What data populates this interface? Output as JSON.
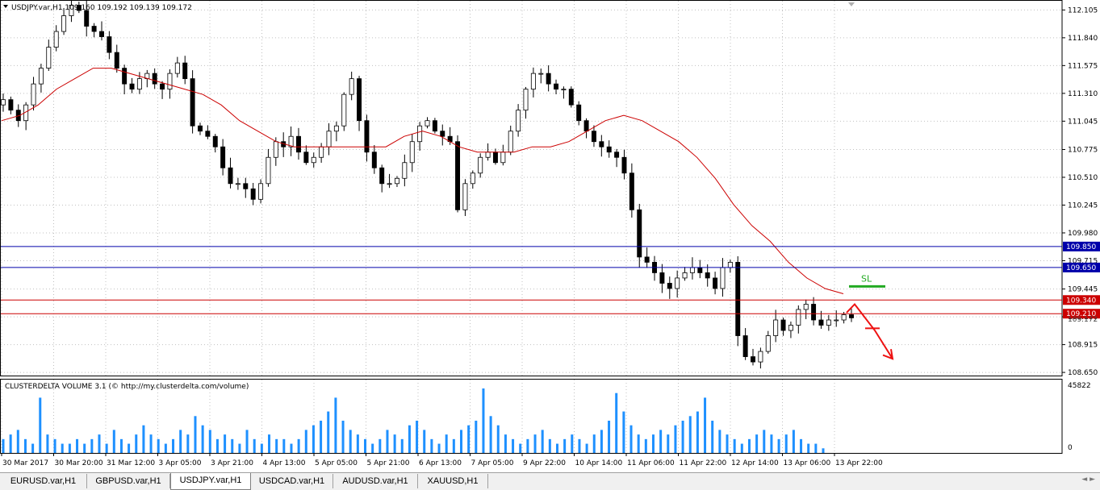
{
  "window": {
    "symbol_header": "USDJPY.var,H1  109.160 109.192 109.139 109.172",
    "indicator_header": "CLUSTERDELTA VOLUME 3.1 (© http://my.clusterdelta.com/volume)"
  },
  "colors": {
    "background": "#ffffff",
    "grid": "#c0c0c0",
    "candle": "#000000",
    "ma_line": "#cc0000",
    "blue_level": "#0000aa",
    "red_level": "#cc0000",
    "volume_bar": "#1e90ff",
    "sl_line": "#22aa22",
    "arrow": "#ee1111"
  },
  "price_axis": {
    "ticks": [
      "112.105",
      "111.840",
      "111.575",
      "111.310",
      "111.045",
      "110.775",
      "110.510",
      "110.245",
      "109.980",
      "109.715",
      "109.445",
      "109.180",
      "108.915",
      "108.650"
    ]
  },
  "levels": [
    {
      "price": "109.850",
      "color": "blue"
    },
    {
      "price": "109.650",
      "color": "blue"
    },
    {
      "price": "109.340",
      "color": "red"
    },
    {
      "price": "109.210",
      "color": "red"
    }
  ],
  "current_price_partial": "109.172",
  "annotation": {
    "sl_label": "SL"
  },
  "volume_axis": {
    "max_label": "45822",
    "zero_label": "0"
  },
  "time_axis": [
    "30 Mar 2017",
    "30 Mar 20:00",
    "31 Mar 12:00",
    "3 Apr 05:00",
    "3 Apr 21:00",
    "4 Apr 13:00",
    "5 Apr 05:00",
    "5 Apr 21:00",
    "6 Apr 13:00",
    "7 Apr 05:00",
    "9 Apr 22:00",
    "10 Apr 14:00",
    "11 Apr 06:00",
    "11 Apr 22:00",
    "12 Apr 14:00",
    "13 Apr 06:00",
    "13 Apr 22:00"
  ],
  "tabs": [
    {
      "label": "EURUSD.var,H1",
      "active": false
    },
    {
      "label": "GBPUSD.var,H1",
      "active": false
    },
    {
      "label": "USDJPY.var,H1",
      "active": true
    },
    {
      "label": "USDCAD.var,H1",
      "active": false
    },
    {
      "label": "AUDUSD.var,H1",
      "active": false
    },
    {
      "label": "XAUUSD,H1",
      "active": false
    }
  ],
  "chart_data": {
    "type": "candlestick",
    "symbol": "USDJPY.var",
    "timeframe": "H1",
    "ylim": [
      108.65,
      112.2
    ],
    "closes_approx": [
      111.25,
      111.15,
      111.05,
      111.2,
      111.4,
      111.55,
      111.75,
      111.9,
      112.05,
      112.15,
      112.1,
      111.95,
      111.9,
      111.85,
      111.7,
      111.55,
      111.4,
      111.35,
      111.45,
      111.5,
      111.4,
      111.35,
      111.5,
      111.6,
      111.45,
      111.0,
      110.95,
      110.9,
      110.8,
      110.6,
      110.45,
      110.45,
      110.4,
      110.3,
      110.45,
      110.7,
      110.85,
      110.8,
      110.9,
      110.75,
      110.65,
      110.7,
      110.8,
      110.95,
      111.0,
      111.3,
      111.45,
      111.05,
      110.75,
      110.6,
      110.45,
      110.45,
      110.5,
      110.65,
      110.85,
      111.0,
      111.05,
      110.95,
      110.9,
      110.85,
      110.2,
      110.45,
      110.55,
      110.7,
      110.75,
      110.65,
      110.75,
      110.95,
      111.15,
      111.35,
      111.5,
      111.5,
      111.4,
      111.35,
      111.35,
      111.2,
      111.05,
      110.95,
      110.85,
      110.8,
      110.75,
      110.7,
      110.55,
      110.2,
      109.75,
      109.7,
      109.6,
      109.5,
      109.45,
      109.55,
      109.6,
      109.65,
      109.6,
      109.55,
      109.45,
      109.65,
      109.7,
      109.0,
      108.8,
      108.75,
      108.85,
      109.0,
      109.15,
      109.05,
      109.1,
      109.25,
      109.3,
      109.15,
      109.1,
      109.15,
      109.15,
      109.2,
      109.17
    ],
    "ma_approx": [
      111.05,
      111.1,
      111.2,
      111.35,
      111.45,
      111.55,
      111.55,
      111.5,
      111.45,
      111.4,
      111.35,
      111.3,
      111.2,
      111.05,
      110.95,
      110.85,
      110.8,
      110.8,
      110.8,
      110.8,
      110.8,
      110.8,
      110.9,
      110.95,
      110.9,
      110.8,
      110.75,
      110.75,
      110.75,
      110.8,
      110.8,
      110.85,
      110.95,
      111.05,
      111.1,
      111.05,
      110.95,
      110.85,
      110.7,
      110.5,
      110.25,
      110.05,
      109.9,
      109.7,
      109.55,
      109.45,
      109.4
    ],
    "volume_approx": [
      3,
      4,
      5,
      3,
      2,
      12,
      4,
      3,
      2,
      2,
      3,
      2,
      3,
      4,
      2,
      5,
      3,
      2,
      4,
      6,
      4,
      3,
      2,
      3,
      5,
      4,
      8,
      6,
      5,
      3,
      4,
      3,
      2,
      5,
      3,
      2,
      4,
      3,
      3,
      2,
      3,
      5,
      6,
      7,
      9,
      12,
      7,
      5,
      4,
      3,
      2,
      3,
      5,
      4,
      3,
      6,
      7,
      5,
      3,
      2,
      4,
      3,
      5,
      6,
      7,
      14,
      8,
      6,
      4,
      3,
      2,
      3,
      4,
      5,
      3,
      2,
      3,
      4,
      3,
      2,
      4,
      5,
      7,
      13,
      9,
      6,
      4,
      3,
      4,
      5,
      4,
      6,
      7,
      8,
      9,
      12,
      7,
      5,
      4,
      3,
      2,
      3,
      4,
      5,
      4,
      3,
      4,
      5,
      3,
      2,
      2,
      1
    ],
    "horizontal_levels": [
      109.85,
      109.65,
      109.34,
      109.21
    ],
    "annotations": [
      "SL"
    ]
  }
}
